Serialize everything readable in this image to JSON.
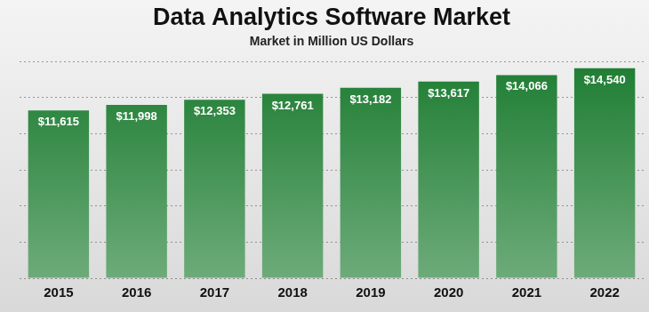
{
  "chart_data": {
    "type": "bar",
    "title": "Data Analytics Software Market",
    "subtitle": "Market in Million US Dollars",
    "categories": [
      "2015",
      "2016",
      "2017",
      "2018",
      "2019",
      "2020",
      "2021",
      "2022"
    ],
    "values": [
      11615,
      11998,
      12353,
      12761,
      13182,
      13617,
      14066,
      14540
    ],
    "value_labels": [
      "$11,615",
      "$11,998",
      "$12,353",
      "$12,761",
      "$13,182",
      "$13,617",
      "$14,066",
      "$14,540"
    ],
    "color": "#1e7d32",
    "ylim": [
      0,
      15000
    ],
    "yticks": [
      0,
      2500,
      5000,
      7500,
      10000,
      12500,
      15000
    ],
    "grid": true,
    "data_labels": true,
    "tick_labels": "x"
  }
}
